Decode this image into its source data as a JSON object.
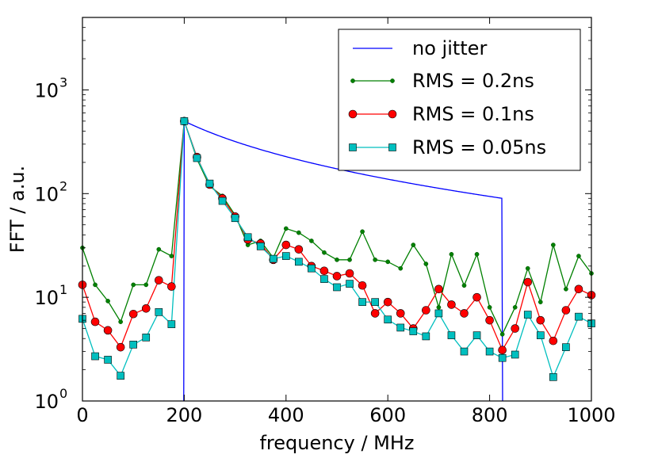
{
  "chart_data": {
    "type": "line",
    "title": "",
    "xlabel": "frequency / MHz",
    "ylabel": "FFT / a.u.",
    "xlim": [
      0,
      1000
    ],
    "ylim": [
      1,
      5000
    ],
    "yscale": "log",
    "grid": false,
    "legend_position": "top-right",
    "x_ticks": [
      "0",
      "200",
      "400",
      "600",
      "800",
      "1000"
    ],
    "y_ticks": [
      {
        "base": "10",
        "exp": "0"
      },
      {
        "base": "10",
        "exp": "1"
      },
      {
        "base": "10",
        "exp": "2"
      },
      {
        "base": "10",
        "exp": "3"
      }
    ],
    "no_jitter": {
      "name": "no jitter",
      "color": "#0000ff",
      "x_start": 200,
      "x_end": 825,
      "peak": 500,
      "drop_to": 1
    },
    "series": [
      {
        "name": "RMS = 0.2ns",
        "color": "#008000",
        "marker": "dot",
        "x": [
          0,
          25,
          50,
          75,
          100,
          125,
          150,
          175,
          200,
          225,
          250,
          275,
          300,
          325,
          350,
          375,
          400,
          425,
          450,
          475,
          500,
          525,
          550,
          575,
          600,
          625,
          650,
          675,
          700,
          725,
          750,
          775,
          800,
          825,
          850,
          875,
          900,
          925,
          950,
          975,
          1000
        ],
        "y": [
          30,
          13.2,
          9.2,
          5.8,
          13.2,
          13.2,
          29,
          25,
          500,
          215,
          118,
          95,
          62,
          32,
          35,
          24,
          46,
          42,
          35,
          27,
          23,
          23,
          43,
          23,
          22,
          19,
          32,
          21,
          8,
          26,
          13,
          26,
          8,
          4.4,
          8,
          19,
          9,
          32,
          12,
          25,
          17
        ]
      },
      {
        "name": "RMS = 0.1ns",
        "color": "#ff0000",
        "marker": "circle",
        "x": [
          0,
          25,
          50,
          75,
          100,
          125,
          150,
          175,
          200,
          225,
          250,
          275,
          300,
          325,
          350,
          375,
          400,
          425,
          450,
          475,
          500,
          525,
          550,
          575,
          600,
          625,
          650,
          675,
          700,
          725,
          750,
          775,
          800,
          825,
          850,
          875,
          900,
          925,
          950,
          975,
          1000
        ],
        "y": [
          13.2,
          5.8,
          4.8,
          3.3,
          6.9,
          7.8,
          14.6,
          12.7,
          500,
          225,
          122,
          90,
          60,
          36,
          33,
          23,
          32,
          29,
          20,
          18,
          16,
          17,
          13,
          7,
          9,
          7,
          5,
          7.5,
          12,
          8.5,
          7,
          10,
          6,
          3.1,
          5,
          14,
          6,
          3.8,
          7.5,
          12,
          10.5
        ]
      },
      {
        "name": "RMS = 0.05ns",
        "color": "#00bfbf",
        "marker": "square",
        "x": [
          0,
          25,
          50,
          75,
          100,
          125,
          150,
          175,
          200,
          225,
          250,
          275,
          300,
          325,
          350,
          375,
          400,
          425,
          450,
          475,
          500,
          525,
          550,
          575,
          600,
          625,
          650,
          675,
          700,
          725,
          750,
          775,
          800,
          825,
          850,
          875,
          900,
          925,
          950,
          975,
          1000
        ],
        "y": [
          6.2,
          2.7,
          2.5,
          1.75,
          3.5,
          4.1,
          7.2,
          5.5,
          500,
          220,
          125,
          85,
          58,
          38,
          31,
          23.5,
          25,
          22,
          19,
          15,
          12.5,
          13.5,
          9,
          9,
          6.1,
          5.1,
          4.7,
          4.2,
          7,
          4.3,
          3,
          4.3,
          3,
          2.6,
          2.8,
          6.8,
          4.3,
          1.7,
          3.3,
          6.5,
          5.6
        ]
      }
    ]
  }
}
